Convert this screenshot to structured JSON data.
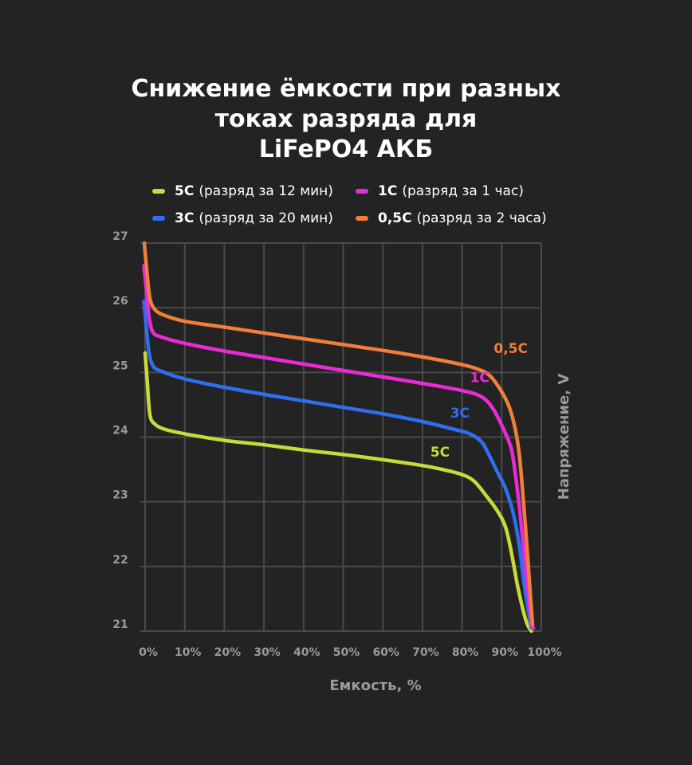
{
  "title_lines": [
    "Снижение ёмкости при разных",
    "токах разряда для",
    "LiFePO4 АКБ"
  ],
  "legend": [
    {
      "label": "5C",
      "desc": "(разряд за 12 мин)",
      "color": "#c9d93a"
    },
    {
      "label": "1C",
      "desc": "(разряд за 1 час)",
      "color": "#ea2bd5"
    },
    {
      "label": "3C",
      "desc": "(разряд за 20 мин)",
      "color": "#2f6ef0"
    },
    {
      "label": "0,5C",
      "desc": "(разряд за 2 часа)",
      "color": "#f07f3a"
    }
  ],
  "chart_data": {
    "type": "line",
    "title": "Снижение ёмкости при разных токах разряда для LiFePO4 АКБ",
    "xlabel": "Емкость, %",
    "ylabel": "Напряжение, V",
    "xlim": [
      0,
      100
    ],
    "ylim": [
      21,
      27
    ],
    "x_ticks": [
      "0%",
      "10%",
      "20%",
      "30%",
      "40%",
      "50%",
      "60%",
      "70%",
      "80%",
      "90%",
      "100%"
    ],
    "y_ticks": [
      "21",
      "22",
      "23",
      "24",
      "25",
      "26",
      "27"
    ],
    "grid": true,
    "series": [
      {
        "name": "5C",
        "color": "#c9d93a",
        "label": "5C",
        "points": [
          [
            0,
            25.3
          ],
          [
            0.5,
            24.9
          ],
          [
            1.2,
            24.35
          ],
          [
            2.5,
            24.2
          ],
          [
            5,
            24.12
          ],
          [
            10,
            24.05
          ],
          [
            20,
            23.95
          ],
          [
            30,
            23.88
          ],
          [
            40,
            23.8
          ],
          [
            50,
            23.73
          ],
          [
            60,
            23.65
          ],
          [
            70,
            23.56
          ],
          [
            75,
            23.5
          ],
          [
            80,
            23.42
          ],
          [
            83,
            23.32
          ],
          [
            86,
            23.1
          ],
          [
            89,
            22.85
          ],
          [
            91,
            22.6
          ],
          [
            92.5,
            22.2
          ],
          [
            94,
            21.7
          ],
          [
            95.5,
            21.3
          ],
          [
            96.5,
            21.1
          ],
          [
            97.5,
            21.0
          ]
        ]
      },
      {
        "name": "3C",
        "color": "#2f6ef0",
        "label": "3C",
        "points": [
          [
            -0.3,
            26.1
          ],
          [
            0.3,
            25.7
          ],
          [
            1,
            25.3
          ],
          [
            2,
            25.1
          ],
          [
            4,
            25.02
          ],
          [
            10,
            24.9
          ],
          [
            20,
            24.77
          ],
          [
            30,
            24.66
          ],
          [
            40,
            24.56
          ],
          [
            50,
            24.46
          ],
          [
            60,
            24.36
          ],
          [
            70,
            24.24
          ],
          [
            78,
            24.12
          ],
          [
            82,
            24.05
          ],
          [
            85,
            23.92
          ],
          [
            87,
            23.7
          ],
          [
            89,
            23.45
          ],
          [
            91,
            23.2
          ],
          [
            93,
            22.8
          ],
          [
            94.5,
            22.3
          ],
          [
            95.5,
            21.8
          ],
          [
            96.5,
            21.4
          ],
          [
            97.5,
            21.05
          ]
        ]
      },
      {
        "name": "1C",
        "color": "#ea2bd5",
        "label": "1C",
        "points": [
          [
            -0.3,
            26.65
          ],
          [
            0.3,
            26.3
          ],
          [
            1,
            25.85
          ],
          [
            2,
            25.62
          ],
          [
            4,
            25.55
          ],
          [
            10,
            25.45
          ],
          [
            20,
            25.33
          ],
          [
            30,
            25.23
          ],
          [
            40,
            25.13
          ],
          [
            50,
            25.03
          ],
          [
            60,
            24.93
          ],
          [
            70,
            24.83
          ],
          [
            80,
            24.72
          ],
          [
            85,
            24.62
          ],
          [
            88,
            24.42
          ],
          [
            91,
            24.05
          ],
          [
            92.5,
            23.8
          ],
          [
            93.5,
            23.4
          ],
          [
            94.5,
            22.9
          ],
          [
            95.5,
            22.3
          ],
          [
            96.5,
            21.7
          ],
          [
            97.5,
            21.15
          ],
          [
            98,
            21.05
          ]
        ]
      },
      {
        "name": "0,5C",
        "color": "#f07f3a",
        "label": "0,5C",
        "points": [
          [
            -0.2,
            27.0
          ],
          [
            0.4,
            26.6
          ],
          [
            1.2,
            26.15
          ],
          [
            2.5,
            25.97
          ],
          [
            5,
            25.88
          ],
          [
            10,
            25.79
          ],
          [
            20,
            25.7
          ],
          [
            30,
            25.61
          ],
          [
            40,
            25.52
          ],
          [
            50,
            25.43
          ],
          [
            60,
            25.34
          ],
          [
            70,
            25.24
          ],
          [
            80,
            25.12
          ],
          [
            84,
            25.05
          ],
          [
            87,
            24.95
          ],
          [
            90,
            24.7
          ],
          [
            92,
            24.45
          ],
          [
            93.5,
            24.1
          ],
          [
            94.5,
            23.7
          ],
          [
            95.5,
            23.0
          ],
          [
            96.5,
            22.2
          ],
          [
            97.3,
            21.5
          ],
          [
            97.8,
            21.1
          ]
        ]
      }
    ],
    "annotations": [
      {
        "text": "5C",
        "x": 72,
        "y": 23.7,
        "color": "#c9d93a"
      },
      {
        "text": "3C",
        "x": 77,
        "y": 24.3,
        "color": "#2f6ef0"
      },
      {
        "text": "1C",
        "x": 82,
        "y": 24.85,
        "color": "#ea2bd5"
      },
      {
        "text": "0,5C",
        "x": 88,
        "y": 25.3,
        "color": "#f07f3a"
      }
    ]
  }
}
